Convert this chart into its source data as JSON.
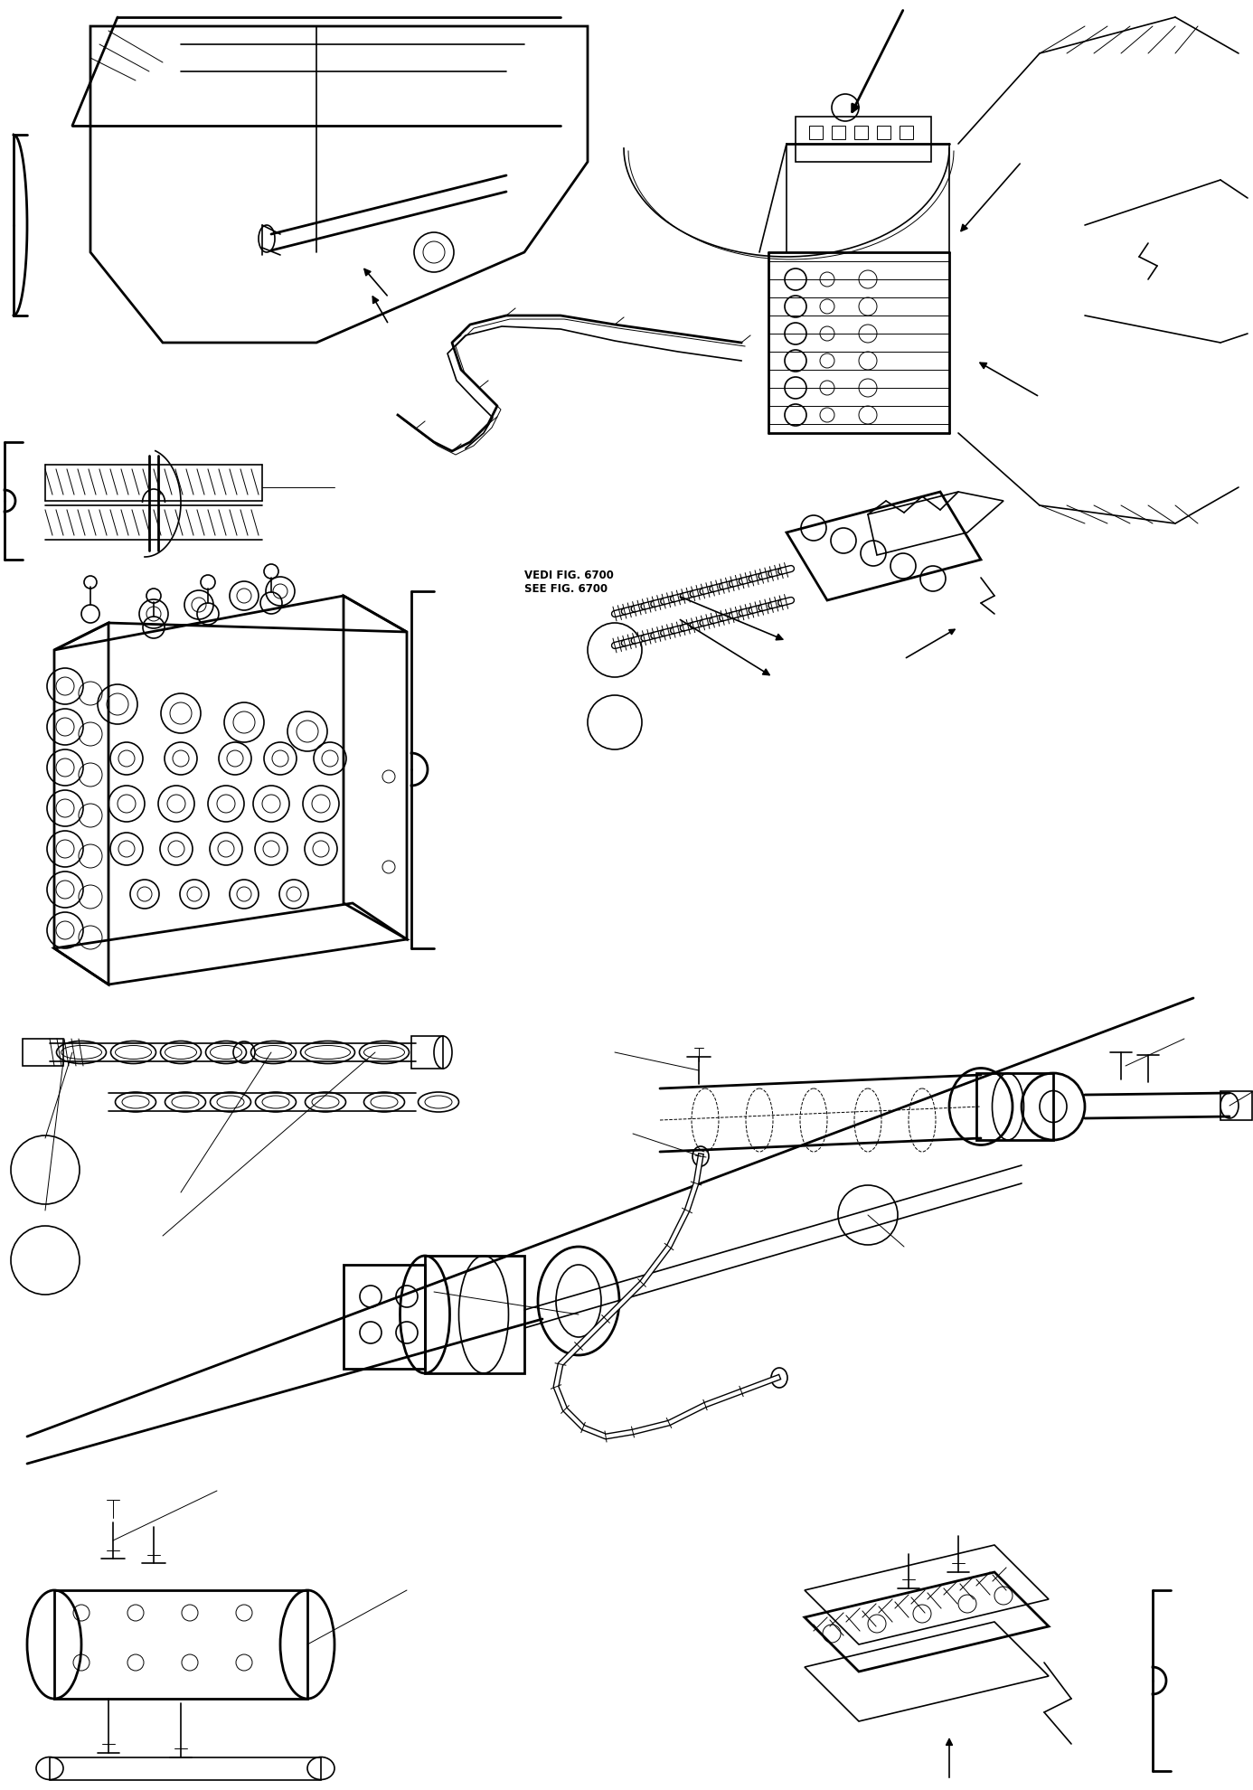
{
  "background_color": "#ffffff",
  "line_color": "#000000",
  "text_color": "#000000",
  "vedi_text": "VEDI FIG. 6700\nSEE FIG. 6700",
  "fig_width": 13.86,
  "fig_height": 19.81,
  "dpi": 100
}
